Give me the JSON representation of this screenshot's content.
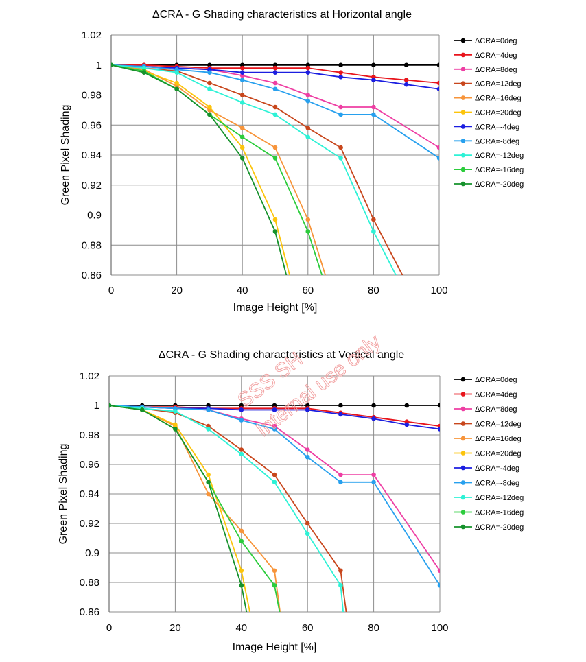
{
  "watermark": {
    "line1": "SSS SH",
    "line2": "Internal use only",
    "color": "#f2a2a2"
  },
  "chart_data": [
    {
      "type": "line",
      "title": "ΔCRA - G Shading characteristics at Horizontal angle",
      "xlabel": "Image Height [%]",
      "ylabel": "Green Pixel Shading",
      "xlim": [
        0,
        100
      ],
      "ylim": [
        0.86,
        1.02
      ],
      "x_ticks": [
        "0",
        "20",
        "40",
        "60",
        "80",
        "100"
      ],
      "y_ticks": [
        "0.86",
        "0.88",
        "0.9",
        "0.92",
        "0.94",
        "0.96",
        "0.98",
        "1",
        "1.02"
      ],
      "grid": true,
      "legend_position": "right",
      "series": [
        {
          "name": "ΔCRA=0deg",
          "color": "#000000",
          "points": [
            [
              0,
              1
            ],
            [
              10,
              1
            ],
            [
              20,
              1
            ],
            [
              30,
              1
            ],
            [
              40,
              1
            ],
            [
              50,
              1
            ],
            [
              60,
              1
            ],
            [
              70,
              1
            ],
            [
              80,
              1
            ],
            [
              90,
              1
            ],
            [
              100,
              1
            ]
          ]
        },
        {
          "name": "ΔCRA=4deg",
          "color": "#e8141b",
          "points": [
            [
              0,
              1
            ],
            [
              10,
              1
            ],
            [
              20,
              0.999
            ],
            [
              30,
              0.998
            ],
            [
              40,
              0.998
            ],
            [
              50,
              0.998
            ],
            [
              60,
              0.998
            ],
            [
              70,
              0.995
            ],
            [
              80,
              0.992
            ],
            [
              90,
              0.99
            ],
            [
              100,
              0.988
            ]
          ]
        },
        {
          "name": "ΔCRA=8deg",
          "color": "#ee3ea3",
          "points": [
            [
              0,
              1
            ],
            [
              10,
              0.999
            ],
            [
              20,
              0.998
            ],
            [
              30,
              0.997
            ],
            [
              40,
              0.993
            ],
            [
              50,
              0.988
            ],
            [
              60,
              0.98
            ],
            [
              70,
              0.972
            ],
            [
              80,
              0.972
            ],
            [
              100,
              0.945
            ]
          ]
        },
        {
          "name": "ΔCRA=12deg",
          "color": "#c8461c",
          "points": [
            [
              0,
              1
            ],
            [
              10,
              0.998
            ],
            [
              20,
              0.996
            ],
            [
              30,
              0.988
            ],
            [
              40,
              0.98
            ],
            [
              50,
              0.972
            ],
            [
              60,
              0.958
            ],
            [
              70,
              0.945
            ],
            [
              80,
              0.897
            ],
            [
              90,
              0.855
            ]
          ]
        },
        {
          "name": "ΔCRA=16deg",
          "color": "#f7943a",
          "points": [
            [
              0,
              1
            ],
            [
              10,
              0.997
            ],
            [
              20,
              0.986
            ],
            [
              30,
              0.97
            ],
            [
              40,
              0.958
            ],
            [
              50,
              0.945
            ],
            [
              60,
              0.897
            ],
            [
              66,
              0.855
            ]
          ]
        },
        {
          "name": "ΔCRA=20deg",
          "color": "#fcc40b",
          "points": [
            [
              0,
              1
            ],
            [
              10,
              0.996
            ],
            [
              20,
              0.988
            ],
            [
              30,
              0.972
            ],
            [
              40,
              0.945
            ],
            [
              50,
              0.897
            ],
            [
              55,
              0.855
            ]
          ]
        },
        {
          "name": "ΔCRA=-4deg",
          "color": "#1b1ee0",
          "points": [
            [
              0,
              1
            ],
            [
              10,
              0.999
            ],
            [
              20,
              0.998
            ],
            [
              30,
              0.997
            ],
            [
              40,
              0.995
            ],
            [
              50,
              0.995
            ],
            [
              60,
              0.995
            ],
            [
              70,
              0.992
            ],
            [
              80,
              0.99
            ],
            [
              90,
              0.987
            ],
            [
              100,
              0.984
            ]
          ]
        },
        {
          "name": "ΔCRA=-8deg",
          "color": "#27a0ee",
          "points": [
            [
              0,
              1
            ],
            [
              10,
              0.999
            ],
            [
              20,
              0.997
            ],
            [
              30,
              0.995
            ],
            [
              40,
              0.99
            ],
            [
              50,
              0.984
            ],
            [
              60,
              0.976
            ],
            [
              70,
              0.967
            ],
            [
              80,
              0.967
            ],
            [
              100,
              0.938
            ]
          ]
        },
        {
          "name": "ΔCRA=-12deg",
          "color": "#2df2d6",
          "points": [
            [
              0,
              1
            ],
            [
              10,
              0.998
            ],
            [
              20,
              0.995
            ],
            [
              30,
              0.984
            ],
            [
              40,
              0.975
            ],
            [
              50,
              0.967
            ],
            [
              60,
              0.952
            ],
            [
              70,
              0.938
            ],
            [
              80,
              0.889
            ],
            [
              88,
              0.855
            ]
          ]
        },
        {
          "name": "ΔCRA=-16deg",
          "color": "#2ccc3c",
          "points": [
            [
              0,
              1
            ],
            [
              10,
              0.996
            ],
            [
              20,
              0.984
            ],
            [
              30,
              0.967
            ],
            [
              40,
              0.952
            ],
            [
              50,
              0.938
            ],
            [
              60,
              0.889
            ],
            [
              65,
              0.855
            ]
          ]
        },
        {
          "name": "ΔCRA=-20deg",
          "color": "#16922c",
          "points": [
            [
              0,
              1
            ],
            [
              10,
              0.995
            ],
            [
              20,
              0.984
            ],
            [
              30,
              0.967
            ],
            [
              40,
              0.938
            ],
            [
              50,
              0.889
            ],
            [
              54,
              0.855
            ]
          ]
        }
      ]
    },
    {
      "type": "line",
      "title": "ΔCRA - G Shading characteristics at Vertical angle",
      "xlabel": "Image Height [%]",
      "ylabel": "Green Pixel Shading",
      "xlim": [
        0,
        100
      ],
      "ylim": [
        0.86,
        1.02
      ],
      "x_ticks": [
        "0",
        "20",
        "40",
        "60",
        "80",
        "100"
      ],
      "y_ticks": [
        "0.86",
        "0.88",
        "0.9",
        "0.92",
        "0.94",
        "0.96",
        "0.98",
        "1",
        "1.02"
      ],
      "grid": true,
      "legend_position": "right",
      "series": [
        {
          "name": "ΔCRA=0deg",
          "color": "#000000",
          "points": [
            [
              0,
              1
            ],
            [
              10,
              1
            ],
            [
              20,
              1
            ],
            [
              30,
              1
            ],
            [
              40,
              1
            ],
            [
              50,
              1
            ],
            [
              60,
              1
            ],
            [
              70,
              1
            ],
            [
              80,
              1
            ],
            [
              90,
              1
            ],
            [
              100,
              1
            ]
          ]
        },
        {
          "name": "ΔCRA=4deg",
          "color": "#e8141b",
          "points": [
            [
              0,
              1
            ],
            [
              10,
              0.999
            ],
            [
              20,
              0.999
            ],
            [
              30,
              0.998
            ],
            [
              40,
              0.998
            ],
            [
              50,
              0.998
            ],
            [
              60,
              0.998
            ],
            [
              70,
              0.995
            ],
            [
              80,
              0.992
            ],
            [
              90,
              0.989
            ],
            [
              100,
              0.986
            ]
          ]
        },
        {
          "name": "ΔCRA=8deg",
          "color": "#ee3ea3",
          "points": [
            [
              0,
              1
            ],
            [
              10,
              0.999
            ],
            [
              20,
              0.998
            ],
            [
              30,
              0.997
            ],
            [
              40,
              0.991
            ],
            [
              50,
              0.986
            ],
            [
              60,
              0.97
            ],
            [
              70,
              0.953
            ],
            [
              80,
              0.953
            ],
            [
              100,
              0.888
            ]
          ]
        },
        {
          "name": "ΔCRA=12deg",
          "color": "#c8461c",
          "points": [
            [
              0,
              1
            ],
            [
              10,
              0.998
            ],
            [
              20,
              0.995
            ],
            [
              30,
              0.986
            ],
            [
              40,
              0.97
            ],
            [
              50,
              0.953
            ],
            [
              60,
              0.92
            ],
            [
              70,
              0.888
            ],
            [
              72,
              0.855
            ]
          ]
        },
        {
          "name": "ΔCRA=16deg",
          "color": "#f7943a",
          "points": [
            [
              0,
              1
            ],
            [
              10,
              0.997
            ],
            [
              20,
              0.986
            ],
            [
              30,
              0.94
            ],
            [
              40,
              0.915
            ],
            [
              50,
              0.888
            ],
            [
              52,
              0.855
            ]
          ]
        },
        {
          "name": "ΔCRA=20deg",
          "color": "#fcc40b",
          "points": [
            [
              0,
              1
            ],
            [
              10,
              0.997
            ],
            [
              20,
              0.987
            ],
            [
              30,
              0.953
            ],
            [
              40,
              0.888
            ],
            [
              43,
              0.855
            ]
          ]
        },
        {
          "name": "ΔCRA=-4deg",
          "color": "#1b1ee0",
          "points": [
            [
              0,
              1
            ],
            [
              10,
              0.999
            ],
            [
              20,
              0.998
            ],
            [
              30,
              0.998
            ],
            [
              40,
              0.997
            ],
            [
              50,
              0.997
            ],
            [
              60,
              0.997
            ],
            [
              70,
              0.994
            ],
            [
              80,
              0.991
            ],
            [
              90,
              0.987
            ],
            [
              100,
              0.984
            ]
          ]
        },
        {
          "name": "ΔCRA=-8deg",
          "color": "#27a0ee",
          "points": [
            [
              0,
              1
            ],
            [
              10,
              0.999
            ],
            [
              20,
              0.998
            ],
            [
              30,
              0.997
            ],
            [
              40,
              0.99
            ],
            [
              50,
              0.984
            ],
            [
              60,
              0.965
            ],
            [
              70,
              0.948
            ],
            [
              80,
              0.948
            ],
            [
              100,
              0.878
            ]
          ]
        },
        {
          "name": "ΔCRA=-12deg",
          "color": "#2df2d6",
          "points": [
            [
              0,
              1
            ],
            [
              10,
              0.998
            ],
            [
              20,
              0.996
            ],
            [
              30,
              0.984
            ],
            [
              40,
              0.967
            ],
            [
              50,
              0.948
            ],
            [
              60,
              0.913
            ],
            [
              70,
              0.878
            ],
            [
              71,
              0.855
            ]
          ]
        },
        {
          "name": "ΔCRA=-16deg",
          "color": "#2ccc3c",
          "points": [
            [
              0,
              1
            ],
            [
              10,
              0.997
            ],
            [
              20,
              0.984
            ],
            [
              30,
              0.948
            ],
            [
              40,
              0.908
            ],
            [
              50,
              0.878
            ],
            [
              52,
              0.855
            ]
          ]
        },
        {
          "name": "ΔCRA=-20deg",
          "color": "#16922c",
          "points": [
            [
              0,
              1
            ],
            [
              10,
              0.997
            ],
            [
              20,
              0.984
            ],
            [
              30,
              0.948
            ],
            [
              40,
              0.878
            ],
            [
              42,
              0.855
            ]
          ]
        }
      ]
    }
  ]
}
